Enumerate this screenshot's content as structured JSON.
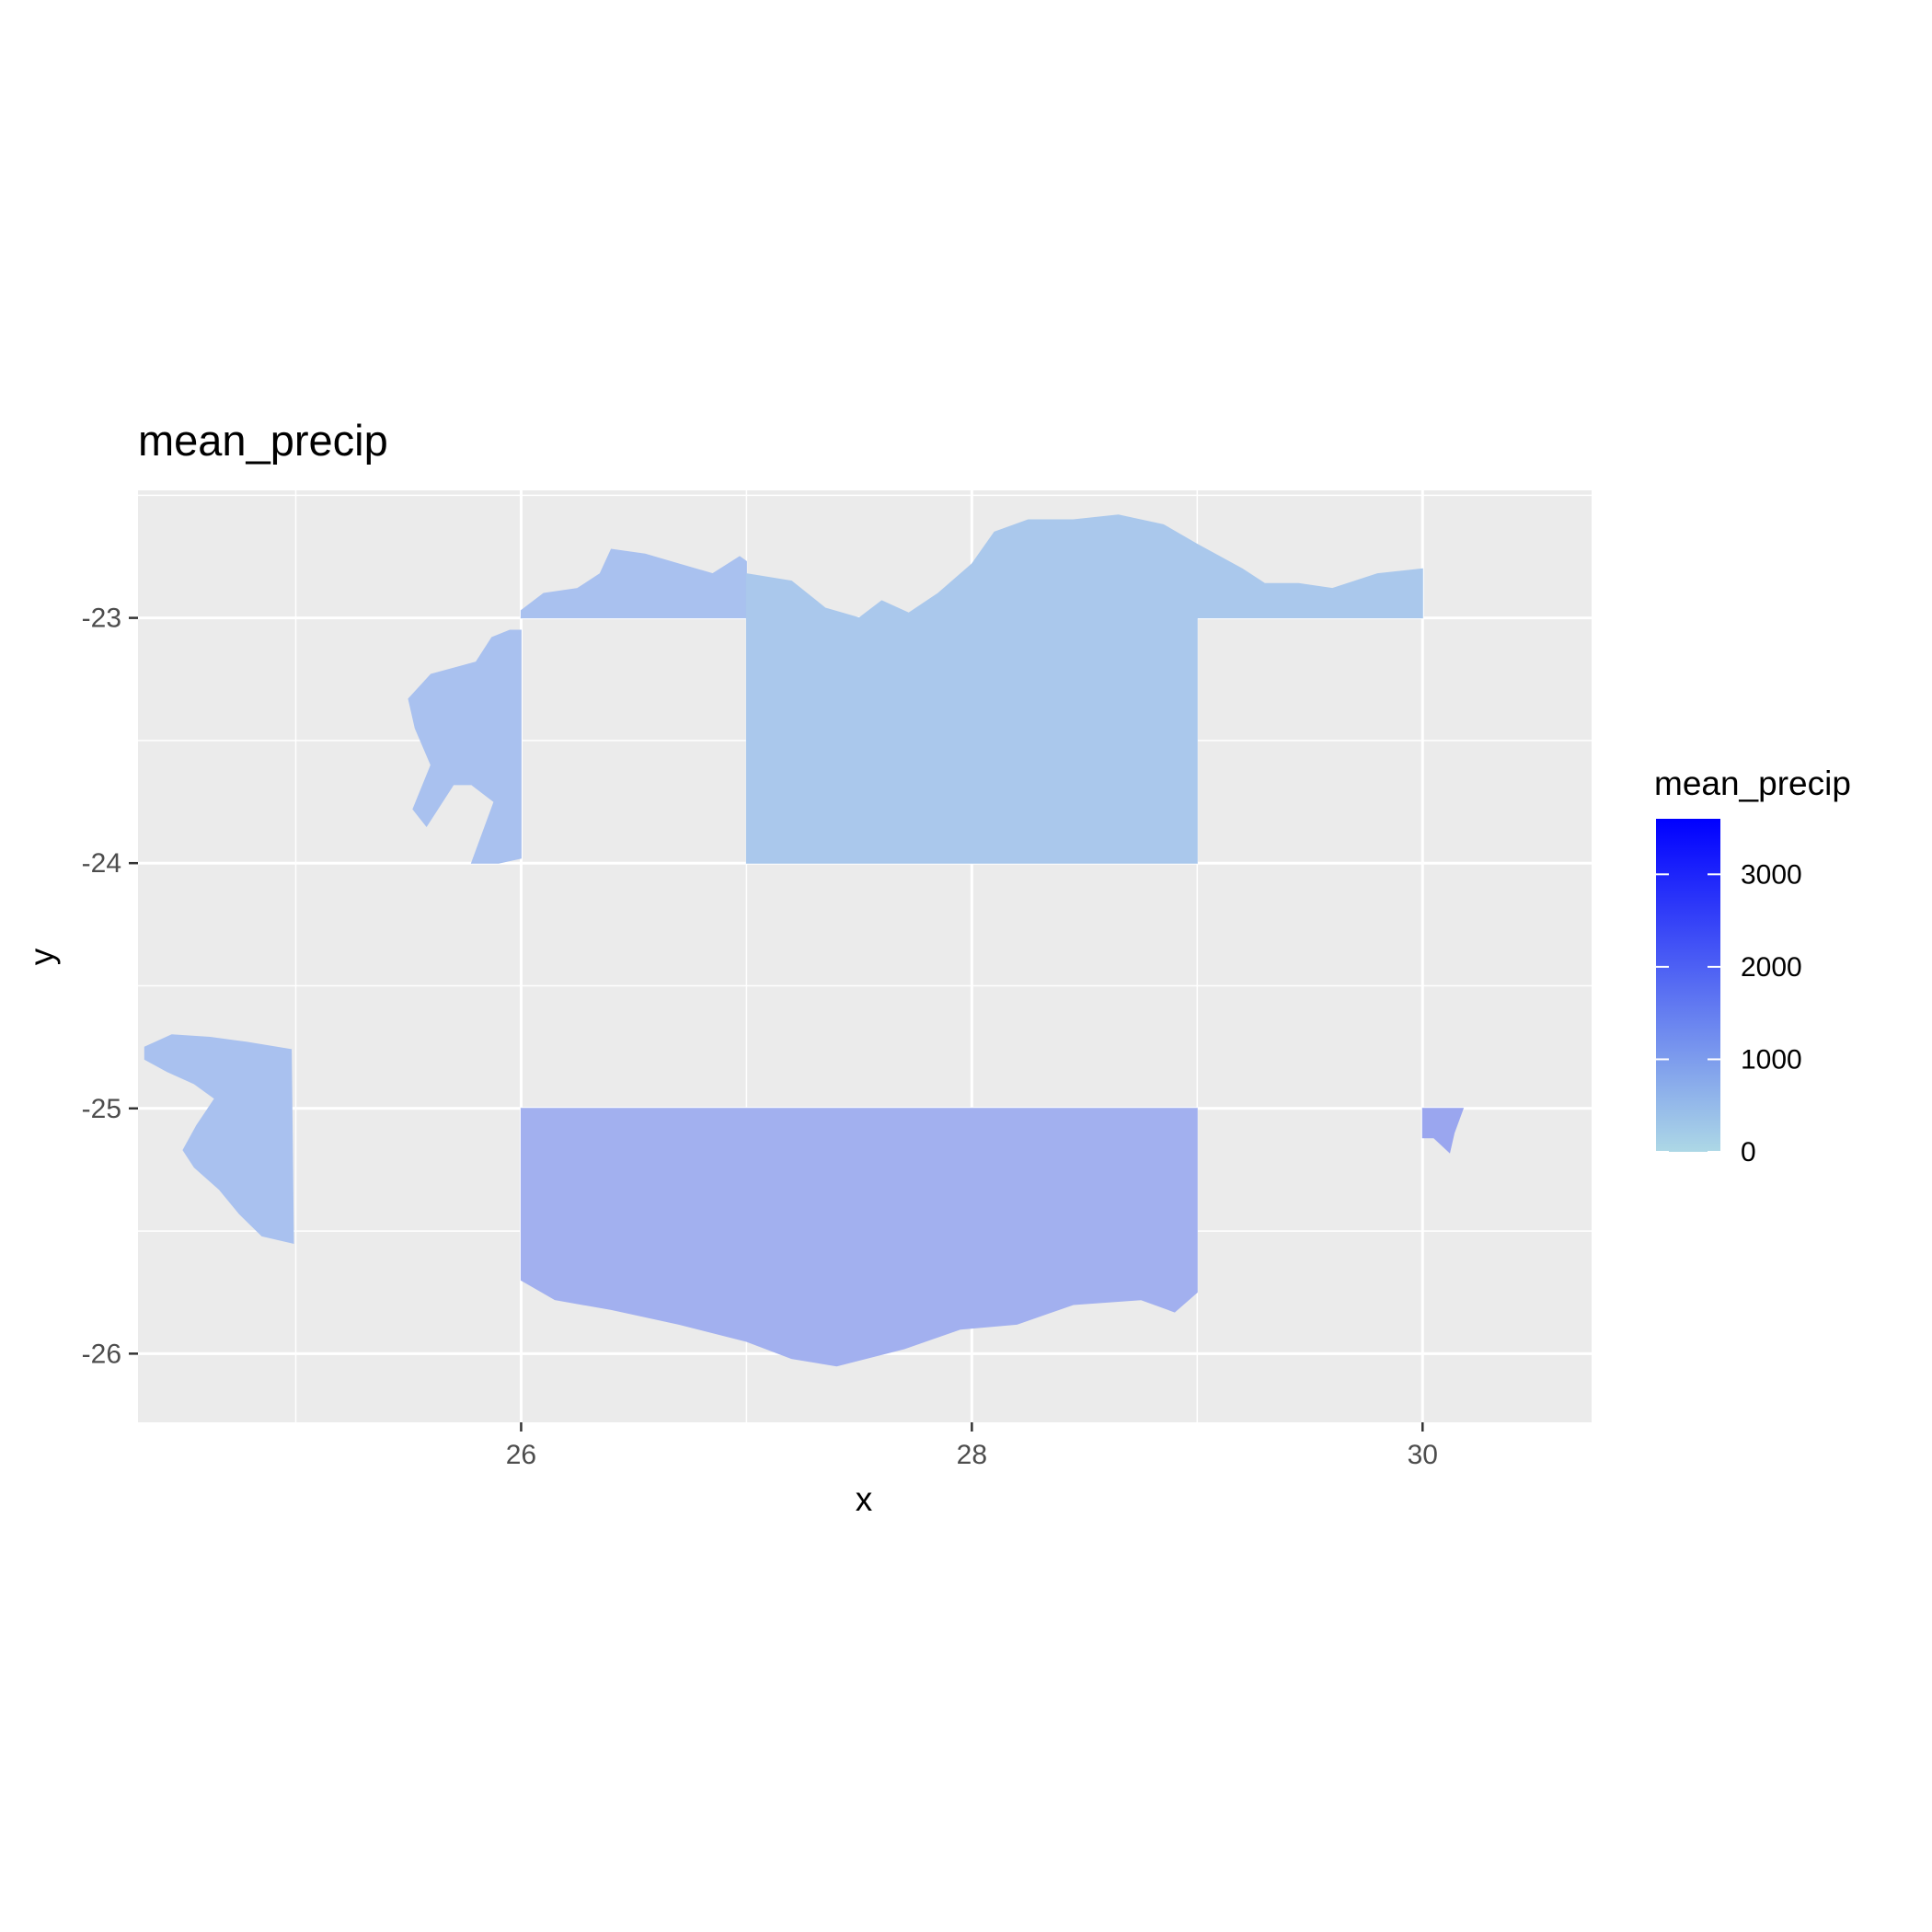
{
  "title": "mean_precip",
  "axes": {
    "x": {
      "label": "x",
      "range": [
        24.3,
        30.75
      ],
      "ticks": [
        26,
        28,
        30
      ],
      "minor": [
        25,
        27,
        29
      ]
    },
    "y": {
      "label": "y",
      "range": [
        -26.28,
        -22.48
      ],
      "ticks": [
        -23,
        -24,
        -25,
        -26
      ],
      "minor": [
        -22.5,
        -23.5,
        -24.5,
        -25.5
      ]
    }
  },
  "legend": {
    "title": "mean_precip",
    "placement": "right",
    "ticks": [
      {
        "value": 3000,
        "label": "3000"
      },
      {
        "value": 2000,
        "label": "2000"
      },
      {
        "value": 1000,
        "label": "1000"
      },
      {
        "value": 0,
        "label": "0"
      }
    ],
    "range": [
      0,
      3600
    ],
    "color_low": "#add8e6",
    "color_high": "#0000ff"
  },
  "colors": {
    "panel": "#ebebeb",
    "grid": "#ffffff",
    "fill_main": "#a9c1ef",
    "fill_top": "#aac8ec",
    "fill_east": "#9aa6ef",
    "fill_south": "#a2b0ef"
  },
  "chart_data": {
    "type": "heatmap",
    "variable": "mean_precip",
    "regions": [
      {
        "name": "west-island",
        "points": [
          [
            24.33,
            -24.75
          ],
          [
            24.45,
            -24.7
          ],
          [
            24.62,
            -24.71
          ],
          [
            24.78,
            -24.73
          ],
          [
            24.98,
            -24.76
          ],
          [
            24.99,
            -25.55
          ],
          [
            24.85,
            -25.52
          ],
          [
            24.75,
            -25.43
          ],
          [
            24.66,
            -25.33
          ],
          [
            24.55,
            -25.24
          ],
          [
            24.5,
            -25.17
          ],
          [
            24.56,
            -25.07
          ],
          [
            24.64,
            -24.96
          ],
          [
            24.55,
            -24.9
          ],
          [
            24.43,
            -24.85
          ],
          [
            24.33,
            -24.8
          ]
        ]
      },
      {
        "name": "north-west-strip",
        "points": [
          [
            25.5,
            -23.33
          ],
          [
            25.6,
            -23.23
          ],
          [
            25.8,
            -23.18
          ],
          [
            25.87,
            -23.08
          ],
          [
            25.95,
            -23.05
          ],
          [
            26.0,
            -23.05
          ],
          [
            26.0,
            -23.98
          ],
          [
            25.9,
            -24.0
          ],
          [
            25.78,
            -24.0
          ],
          [
            25.82,
            -23.9
          ],
          [
            25.88,
            -23.75
          ],
          [
            25.78,
            -23.68
          ],
          [
            25.7,
            -23.68
          ],
          [
            25.58,
            -23.85
          ],
          [
            25.52,
            -23.78
          ],
          [
            25.6,
            -23.6
          ],
          [
            25.53,
            -23.45
          ]
        ]
      },
      {
        "name": "north-rim-left",
        "points": [
          [
            26.0,
            -23.0
          ],
          [
            26.0,
            -22.97
          ],
          [
            26.1,
            -22.9
          ],
          [
            26.25,
            -22.88
          ],
          [
            26.35,
            -22.82
          ],
          [
            26.4,
            -22.72
          ],
          [
            26.55,
            -22.74
          ],
          [
            26.7,
            -22.78
          ],
          [
            26.85,
            -22.82
          ],
          [
            26.97,
            -22.75
          ],
          [
            27.0,
            -22.77
          ],
          [
            27.0,
            -23.0
          ]
        ]
      },
      {
        "name": "north-central",
        "points": [
          [
            27.0,
            -22.82
          ],
          [
            27.2,
            -22.85
          ],
          [
            27.35,
            -22.96
          ],
          [
            27.5,
            -23.0
          ],
          [
            27.6,
            -22.93
          ],
          [
            27.72,
            -22.98
          ],
          [
            27.85,
            -22.9
          ],
          [
            28.0,
            -22.78
          ],
          [
            28.1,
            -22.65
          ],
          [
            28.25,
            -22.6
          ],
          [
            28.45,
            -22.6
          ],
          [
            28.65,
            -22.58
          ],
          [
            28.85,
            -22.62
          ],
          [
            29.0,
            -22.7
          ],
          [
            29.2,
            -22.8
          ],
          [
            29.3,
            -22.86
          ],
          [
            29.45,
            -22.86
          ],
          [
            29.6,
            -22.88
          ],
          [
            29.8,
            -22.82
          ],
          [
            30.0,
            -22.8
          ],
          [
            30.0,
            -23.0
          ],
          [
            29.0,
            -23.0
          ],
          [
            29.0,
            -24.0
          ],
          [
            27.0,
            -24.0
          ]
        ]
      },
      {
        "name": "south-block",
        "points": [
          [
            26.0,
            -25.0
          ],
          [
            29.0,
            -25.0
          ],
          [
            29.0,
            -25.75
          ],
          [
            28.9,
            -25.83
          ],
          [
            28.75,
            -25.78
          ],
          [
            28.45,
            -25.8
          ],
          [
            28.2,
            -25.88
          ],
          [
            27.95,
            -25.9
          ],
          [
            27.7,
            -25.98
          ],
          [
            27.4,
            -26.05
          ],
          [
            27.2,
            -26.02
          ],
          [
            27.0,
            -25.95
          ],
          [
            26.7,
            -25.88
          ],
          [
            26.4,
            -25.82
          ],
          [
            26.15,
            -25.78
          ],
          [
            26.0,
            -25.7
          ]
        ]
      },
      {
        "name": "south-east-fragment",
        "points": [
          [
            30.0,
            -25.0
          ],
          [
            30.18,
            -25.0
          ],
          [
            30.14,
            -25.1
          ],
          [
            30.12,
            -25.18
          ],
          [
            30.05,
            -25.12
          ],
          [
            30.0,
            -25.12
          ]
        ]
      }
    ]
  }
}
